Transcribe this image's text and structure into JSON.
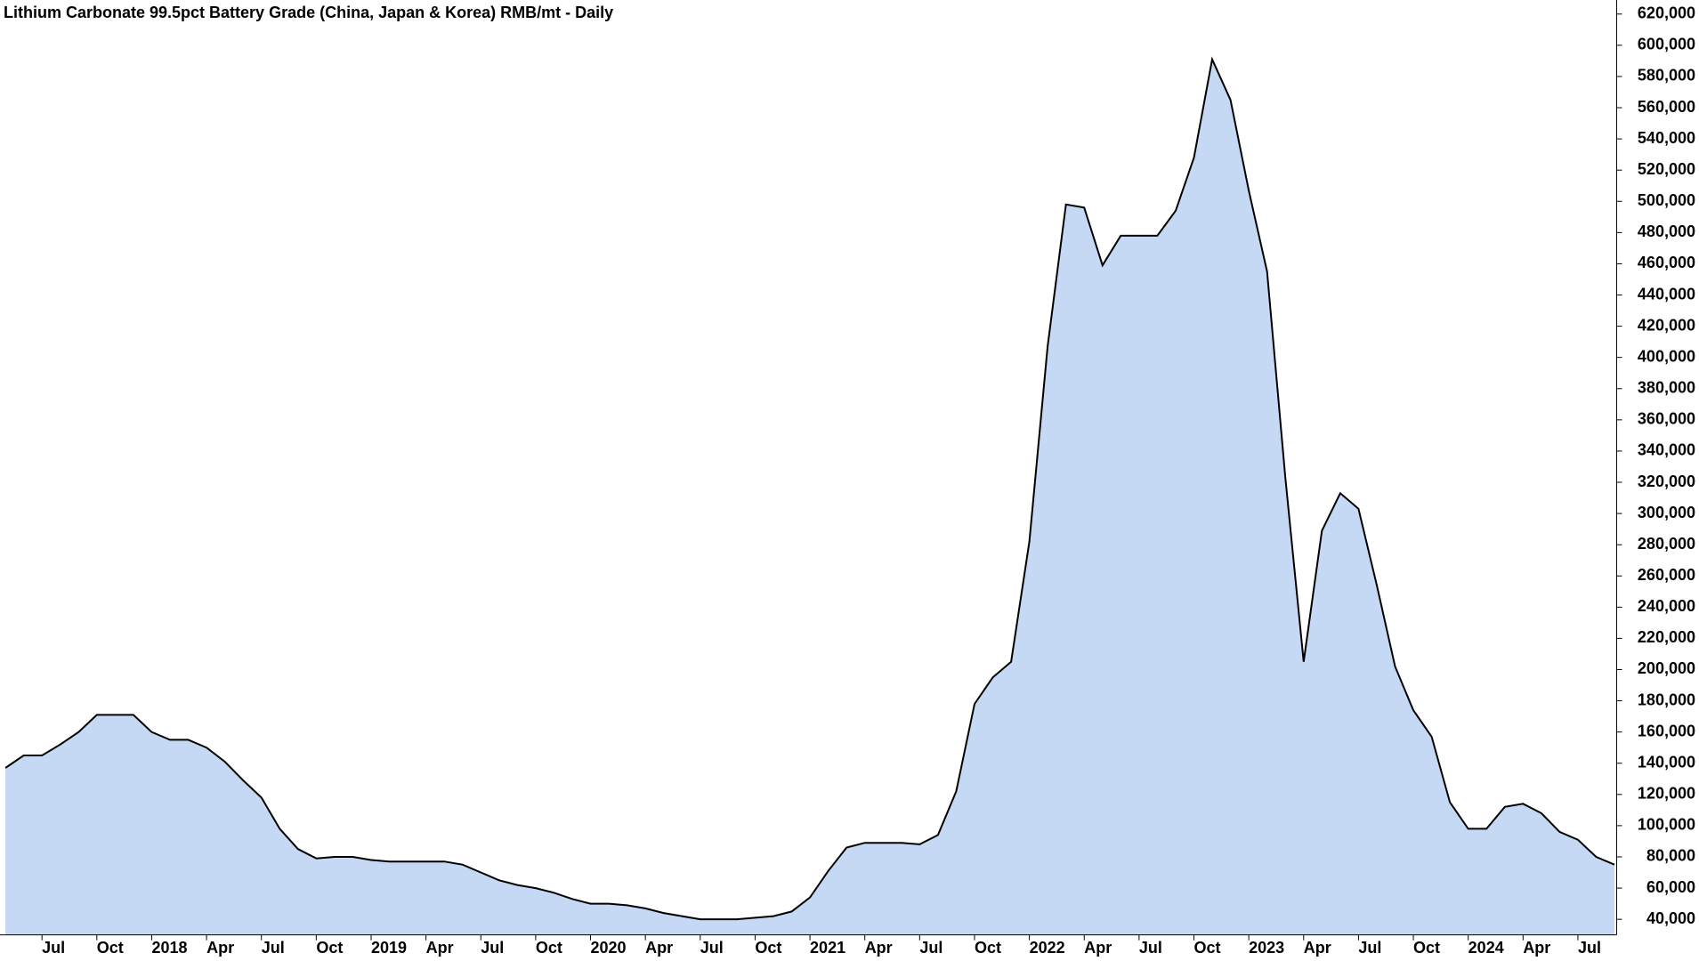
{
  "chart_data": {
    "type": "area",
    "title": "Lithium Carbonate 99.5pct Battery Grade (China, Japan & Korea) RMB/mt - Daily",
    "x": [
      "2017-05",
      "2017-06",
      "2017-07",
      "2017-08",
      "2017-09",
      "2017-10",
      "2017-11",
      "2017-12",
      "2018-01",
      "2018-02",
      "2018-03",
      "2018-04",
      "2018-05",
      "2018-06",
      "2018-07",
      "2018-08",
      "2018-09",
      "2018-10",
      "2018-11",
      "2018-12",
      "2019-01",
      "2019-02",
      "2019-03",
      "2019-04",
      "2019-05",
      "2019-06",
      "2019-07",
      "2019-08",
      "2019-09",
      "2019-10",
      "2019-11",
      "2019-12",
      "2020-01",
      "2020-02",
      "2020-03",
      "2020-04",
      "2020-05",
      "2020-06",
      "2020-07",
      "2020-08",
      "2020-09",
      "2020-10",
      "2020-11",
      "2020-12",
      "2021-01",
      "2021-02",
      "2021-03",
      "2021-04",
      "2021-05",
      "2021-06",
      "2021-07",
      "2021-08",
      "2021-09",
      "2021-10",
      "2021-11",
      "2021-12",
      "2022-01",
      "2022-02",
      "2022-03",
      "2022-04",
      "2022-05",
      "2022-06",
      "2022-07",
      "2022-08",
      "2022-09",
      "2022-10",
      "2022-11",
      "2022-12",
      "2023-01",
      "2023-02",
      "2023-03",
      "2023-04",
      "2023-05",
      "2023-06",
      "2023-07",
      "2023-08",
      "2023-09",
      "2023-10",
      "2023-11",
      "2023-12",
      "2024-01",
      "2024-02",
      "2024-03",
      "2024-04",
      "2024-05",
      "2024-06",
      "2024-07",
      "2024-08",
      "2024-09"
    ],
    "series": [
      {
        "color": "#c5d9f4",
        "values": [
          137000,
          145000,
          145000,
          152000,
          160000,
          171000,
          171000,
          171000,
          160000,
          155000,
          155000,
          150000,
          141000,
          129000,
          118000,
          98000,
          85000,
          79000,
          80000,
          80000,
          78000,
          77000,
          77000,
          77000,
          77000,
          75000,
          70000,
          65000,
          62000,
          60000,
          57000,
          53000,
          50000,
          50000,
          49000,
          47000,
          44000,
          42000,
          40000,
          40000,
          40000,
          41000,
          42000,
          45000,
          54000,
          71000,
          86000,
          89000,
          89000,
          89000,
          88000,
          94000,
          122000,
          178000,
          195000,
          205000,
          282000,
          407000,
          498000,
          496000,
          459000,
          478000,
          478000,
          478000,
          494000,
          528000,
          591000,
          565000,
          507000,
          455000,
          323000,
          205000,
          289000,
          313000,
          303000,
          254000,
          202000,
          174000,
          157000,
          115000,
          98000,
          98000,
          112000,
          114000,
          108000,
          96000,
          91000,
          80000,
          75000
        ]
      }
    ],
    "ylim": [
      30000,
      629000
    ],
    "yticks": [
      {
        "value": 40000,
        "label": "40,000"
      },
      {
        "value": 60000,
        "label": "60,000"
      },
      {
        "value": 80000,
        "label": "80,000"
      },
      {
        "value": 100000,
        "label": "100,000"
      },
      {
        "value": 120000,
        "label": "120,000"
      },
      {
        "value": 140000,
        "label": "140,000"
      },
      {
        "value": 160000,
        "label": "160,000"
      },
      {
        "value": 180000,
        "label": "180,000"
      },
      {
        "value": 200000,
        "label": "200,000"
      },
      {
        "value": 220000,
        "label": "220,000"
      },
      {
        "value": 240000,
        "label": "240,000"
      },
      {
        "value": 260000,
        "label": "260,000"
      },
      {
        "value": 280000,
        "label": "280,000"
      },
      {
        "value": 300000,
        "label": "300,000"
      },
      {
        "value": 320000,
        "label": "320,000"
      },
      {
        "value": 340000,
        "label": "340,000"
      },
      {
        "value": 360000,
        "label": "360,000"
      },
      {
        "value": 380000,
        "label": "380,000"
      },
      {
        "value": 400000,
        "label": "400,000"
      },
      {
        "value": 420000,
        "label": "420,000"
      },
      {
        "value": 440000,
        "label": "440,000"
      },
      {
        "value": 460000,
        "label": "460,000"
      },
      {
        "value": 480000,
        "label": "480,000"
      },
      {
        "value": 500000,
        "label": "500,000"
      },
      {
        "value": 520000,
        "label": "520,000"
      },
      {
        "value": 540000,
        "label": "540,000"
      },
      {
        "value": 560000,
        "label": "560,000"
      },
      {
        "value": 580000,
        "label": "580,000"
      },
      {
        "value": 600000,
        "label": "600,000"
      },
      {
        "value": 620000,
        "label": "620,000"
      }
    ],
    "xticks": [
      {
        "value": "2017-07",
        "label": "Jul"
      },
      {
        "value": "2017-10",
        "label": "Oct"
      },
      {
        "value": "2018-01",
        "label": "2018"
      },
      {
        "value": "2018-04",
        "label": "Apr"
      },
      {
        "value": "2018-07",
        "label": "Jul"
      },
      {
        "value": "2018-10",
        "label": "Oct"
      },
      {
        "value": "2019-01",
        "label": "2019"
      },
      {
        "value": "2019-04",
        "label": "Apr"
      },
      {
        "value": "2019-07",
        "label": "Jul"
      },
      {
        "value": "2019-10",
        "label": "Oct"
      },
      {
        "value": "2020-01",
        "label": "2020"
      },
      {
        "value": "2020-04",
        "label": "Apr"
      },
      {
        "value": "2020-07",
        "label": "Jul"
      },
      {
        "value": "2020-10",
        "label": "Oct"
      },
      {
        "value": "2021-01",
        "label": "2021"
      },
      {
        "value": "2021-04",
        "label": "Apr"
      },
      {
        "value": "2021-07",
        "label": "Jul"
      },
      {
        "value": "2021-10",
        "label": "Oct"
      },
      {
        "value": "2022-01",
        "label": "2022"
      },
      {
        "value": "2022-04",
        "label": "Apr"
      },
      {
        "value": "2022-07",
        "label": "Jul"
      },
      {
        "value": "2022-10",
        "label": "Oct"
      },
      {
        "value": "2023-01",
        "label": "2023"
      },
      {
        "value": "2023-04",
        "label": "Apr"
      },
      {
        "value": "2023-07",
        "label": "Jul"
      },
      {
        "value": "2023-10",
        "label": "Oct"
      },
      {
        "value": "2024-01",
        "label": "2024"
      },
      {
        "value": "2024-04",
        "label": "Apr"
      },
      {
        "value": "2024-07",
        "label": "Jul"
      }
    ]
  }
}
